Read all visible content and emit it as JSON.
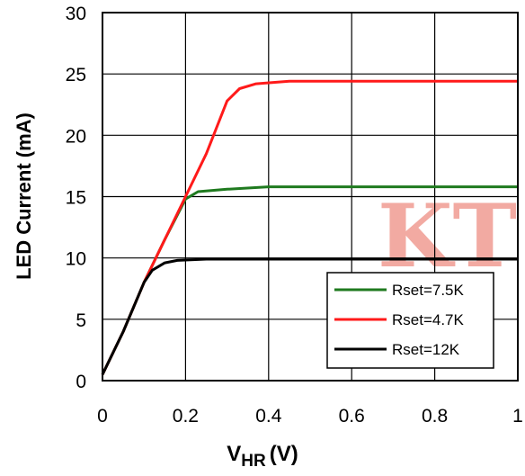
{
  "watermark": {
    "text": "KT",
    "color": "#f2aaa2"
  },
  "chart_data": {
    "type": "line",
    "xlabel_main": "V",
    "xlabel_sub": "HR",
    "xlabel_unit": "(V)",
    "ylabel": "LED Current (mA)",
    "xlim": [
      0,
      1
    ],
    "ylim": [
      0,
      30
    ],
    "xticks": [
      "0",
      "0.2",
      "0.4",
      "0.6",
      "0.8",
      "1"
    ],
    "yticks": [
      "0",
      "5",
      "10",
      "15",
      "20",
      "25",
      "30"
    ],
    "grid": true,
    "legend_position": "bottom-right",
    "series": [
      {
        "name": "Rset=7.5K",
        "color": "#1f7a1f",
        "points": [
          [
            0,
            0.5
          ],
          [
            0.05,
            4
          ],
          [
            0.1,
            8
          ],
          [
            0.15,
            11.5
          ],
          [
            0.2,
            14.8
          ],
          [
            0.23,
            15.4
          ],
          [
            0.3,
            15.6
          ],
          [
            0.4,
            15.8
          ],
          [
            0.6,
            15.8
          ],
          [
            1.0,
            15.8
          ]
        ]
      },
      {
        "name": "Rset=4.7K",
        "color": "#ff1a1a",
        "points": [
          [
            0,
            0.5
          ],
          [
            0.05,
            4
          ],
          [
            0.1,
            8
          ],
          [
            0.15,
            11.5
          ],
          [
            0.2,
            15
          ],
          [
            0.25,
            18.5
          ],
          [
            0.3,
            22.8
          ],
          [
            0.33,
            23.8
          ],
          [
            0.37,
            24.2
          ],
          [
            0.45,
            24.4
          ],
          [
            1.0,
            24.4
          ]
        ]
      },
      {
        "name": "Rset=12K",
        "color": "#000000",
        "points": [
          [
            0,
            0.5
          ],
          [
            0.05,
            4
          ],
          [
            0.1,
            8
          ],
          [
            0.12,
            9
          ],
          [
            0.15,
            9.6
          ],
          [
            0.18,
            9.8
          ],
          [
            0.25,
            9.9
          ],
          [
            0.5,
            9.9
          ],
          [
            1.0,
            9.9
          ]
        ]
      }
    ]
  }
}
